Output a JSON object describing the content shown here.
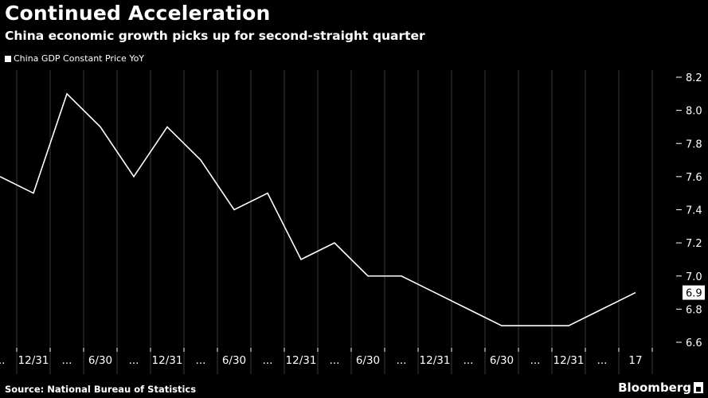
{
  "header": {
    "title": "Continued Acceleration",
    "subtitle": "China economic growth picks up for second-straight quarter"
  },
  "legend": {
    "label": "China GDP Constant Price YoY"
  },
  "footer": {
    "source": "Source: National Bureau of Statistics",
    "brand": "Bloomberg"
  },
  "colors": {
    "background": "#000000",
    "line": "#ffffff",
    "grid": "#3a3a3a",
    "text": "#ffffff"
  },
  "chart_data": {
    "type": "line",
    "title": "Continued Acceleration",
    "subtitle": "China economic growth picks up for second-straight quarter",
    "xlabel": "",
    "ylabel": "",
    "series": [
      {
        "name": "China GDP Constant Price YoY",
        "values": [
          7.6,
          7.5,
          8.1,
          7.9,
          7.6,
          7.9,
          7.7,
          7.4,
          7.5,
          7.1,
          7.2,
          7.0,
          7.0,
          6.9,
          6.8,
          6.7,
          6.7,
          6.7,
          6.8,
          6.9
        ]
      }
    ],
    "x_tick_labels": [
      "...",
      "12/31",
      "...",
      "6/30",
      "...",
      "12/31",
      "...",
      "6/30",
      "...",
      "12/31",
      "...",
      "6/30",
      "...",
      "12/31",
      "...",
      "6/30",
      "...",
      "12/31",
      "...",
      "17"
    ],
    "y_ticks": [
      6.6,
      6.8,
      7.0,
      7.2,
      7.4,
      7.6,
      7.8,
      8.0,
      8.2
    ],
    "y_tick_labels": [
      "6.6",
      "6.8",
      "7.0",
      "7.2",
      "7.4",
      "7.6",
      "7.8",
      "8.0",
      "8.2"
    ],
    "ylim": [
      6.6,
      8.2
    ],
    "last_value_label": "6.9",
    "grid": "vertical",
    "legend_position": "top-left"
  }
}
